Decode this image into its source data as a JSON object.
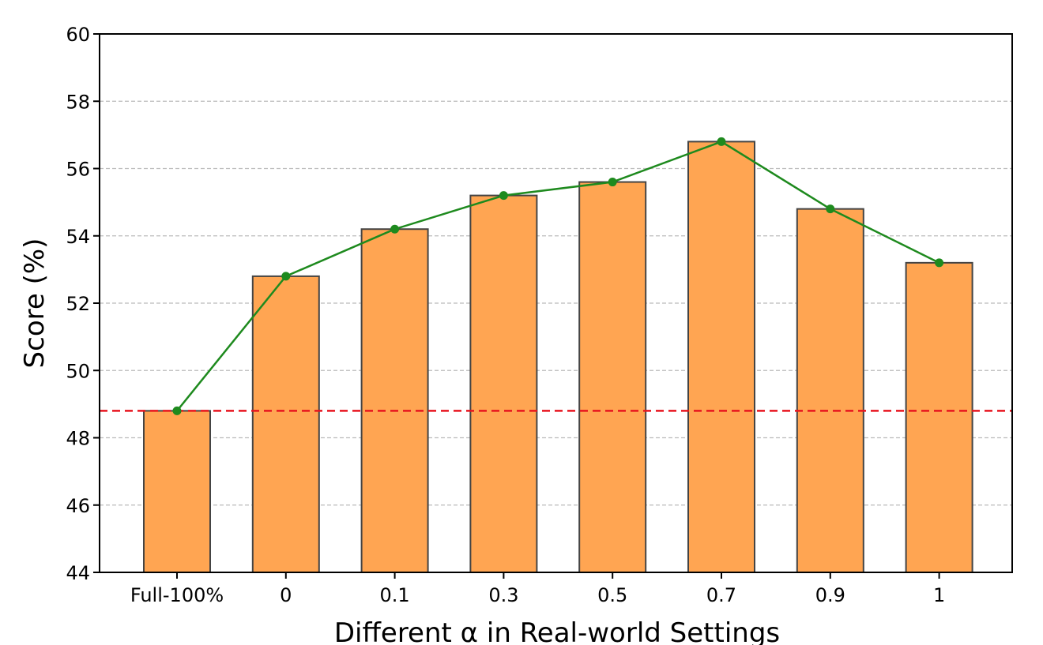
{
  "chart_data": {
    "type": "bar",
    "xlabel": "Different α in Real-world Settings",
    "ylabel": "Score (%)",
    "categories": [
      "Full-100%",
      "0",
      "0.1",
      "0.3",
      "0.5",
      "0.7",
      "0.9",
      "1"
    ],
    "series": [
      {
        "kind": "bar",
        "values": [
          48.8,
          52.8,
          54.2,
          55.2,
          55.6,
          56.8,
          54.8,
          53.2
        ],
        "color": "#FFA552"
      },
      {
        "kind": "line",
        "values": [
          48.8,
          52.8,
          54.2,
          55.2,
          55.6,
          56.8,
          54.8,
          53.2
        ],
        "color": "#1E8A1E"
      }
    ],
    "reference_line": {
      "value": 48.8,
      "color": "#E8141E",
      "style": "dashed"
    },
    "ylim": [
      44,
      60
    ],
    "yticks": [
      44,
      46,
      48,
      50,
      52,
      54,
      56,
      58,
      60
    ],
    "grid": {
      "y": true,
      "style": "dashed",
      "color": "#BBBBBB"
    },
    "legend": "none"
  }
}
